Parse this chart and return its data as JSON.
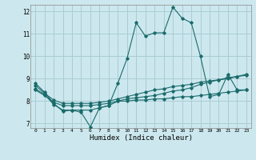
{
  "title": "",
  "xlabel": "Humidex (Indice chaleur)",
  "ylabel": "",
  "xlim": [
    -0.5,
    23.5
  ],
  "ylim": [
    6.8,
    12.3
  ],
  "yticks": [
    7,
    8,
    9,
    10,
    11,
    12
  ],
  "xticks": [
    0,
    1,
    2,
    3,
    4,
    5,
    6,
    7,
    8,
    9,
    10,
    11,
    12,
    13,
    14,
    15,
    16,
    17,
    18,
    19,
    20,
    21,
    22,
    23
  ],
  "bg_color": "#cce8ee",
  "grid_color": "#aaccd4",
  "line_color": "#1a6b6b",
  "series1": {
    "x": [
      0,
      1,
      2,
      3,
      4,
      5,
      6,
      7,
      8,
      9,
      10,
      11,
      12,
      13,
      14,
      15,
      16,
      17,
      18,
      19,
      20,
      21,
      22,
      23
    ],
    "y": [
      8.8,
      8.4,
      7.9,
      7.55,
      7.6,
      7.5,
      6.85,
      7.7,
      7.8,
      8.8,
      9.9,
      11.5,
      10.9,
      11.05,
      11.05,
      12.2,
      11.7,
      11.5,
      10.0,
      8.2,
      8.3,
      9.2,
      8.5,
      8.5
    ]
  },
  "series2": {
    "x": [
      0,
      1,
      2,
      3,
      4,
      5,
      6,
      7,
      8,
      9,
      10,
      11,
      12,
      13,
      14,
      15,
      16,
      17,
      18,
      19,
      20,
      21,
      22,
      23
    ],
    "y": [
      8.55,
      8.3,
      7.85,
      7.6,
      7.6,
      7.6,
      7.6,
      7.7,
      7.8,
      8.0,
      8.0,
      8.05,
      8.05,
      8.1,
      8.1,
      8.15,
      8.2,
      8.2,
      8.25,
      8.3,
      8.35,
      8.4,
      8.45,
      8.5
    ]
  },
  "series3": {
    "x": [
      0,
      1,
      2,
      3,
      4,
      5,
      6,
      7,
      8,
      9,
      10,
      11,
      12,
      13,
      14,
      15,
      16,
      17,
      18,
      19,
      20,
      21,
      22,
      23
    ],
    "y": [
      8.7,
      8.35,
      8.05,
      7.9,
      7.9,
      7.9,
      7.9,
      7.95,
      8.0,
      8.1,
      8.2,
      8.3,
      8.4,
      8.5,
      8.55,
      8.65,
      8.7,
      8.75,
      8.85,
      8.9,
      8.95,
      9.0,
      9.1,
      9.15
    ]
  },
  "series4": {
    "x": [
      0,
      1,
      2,
      3,
      4,
      5,
      6,
      7,
      8,
      9,
      10,
      11,
      12,
      13,
      14,
      15,
      16,
      17,
      18,
      19,
      20,
      21,
      22,
      23
    ],
    "y": [
      8.5,
      8.25,
      7.95,
      7.8,
      7.8,
      7.8,
      7.8,
      7.85,
      7.9,
      8.0,
      8.1,
      8.15,
      8.2,
      8.25,
      8.35,
      8.45,
      8.5,
      8.6,
      8.75,
      8.85,
      8.95,
      9.05,
      9.1,
      9.2
    ]
  }
}
